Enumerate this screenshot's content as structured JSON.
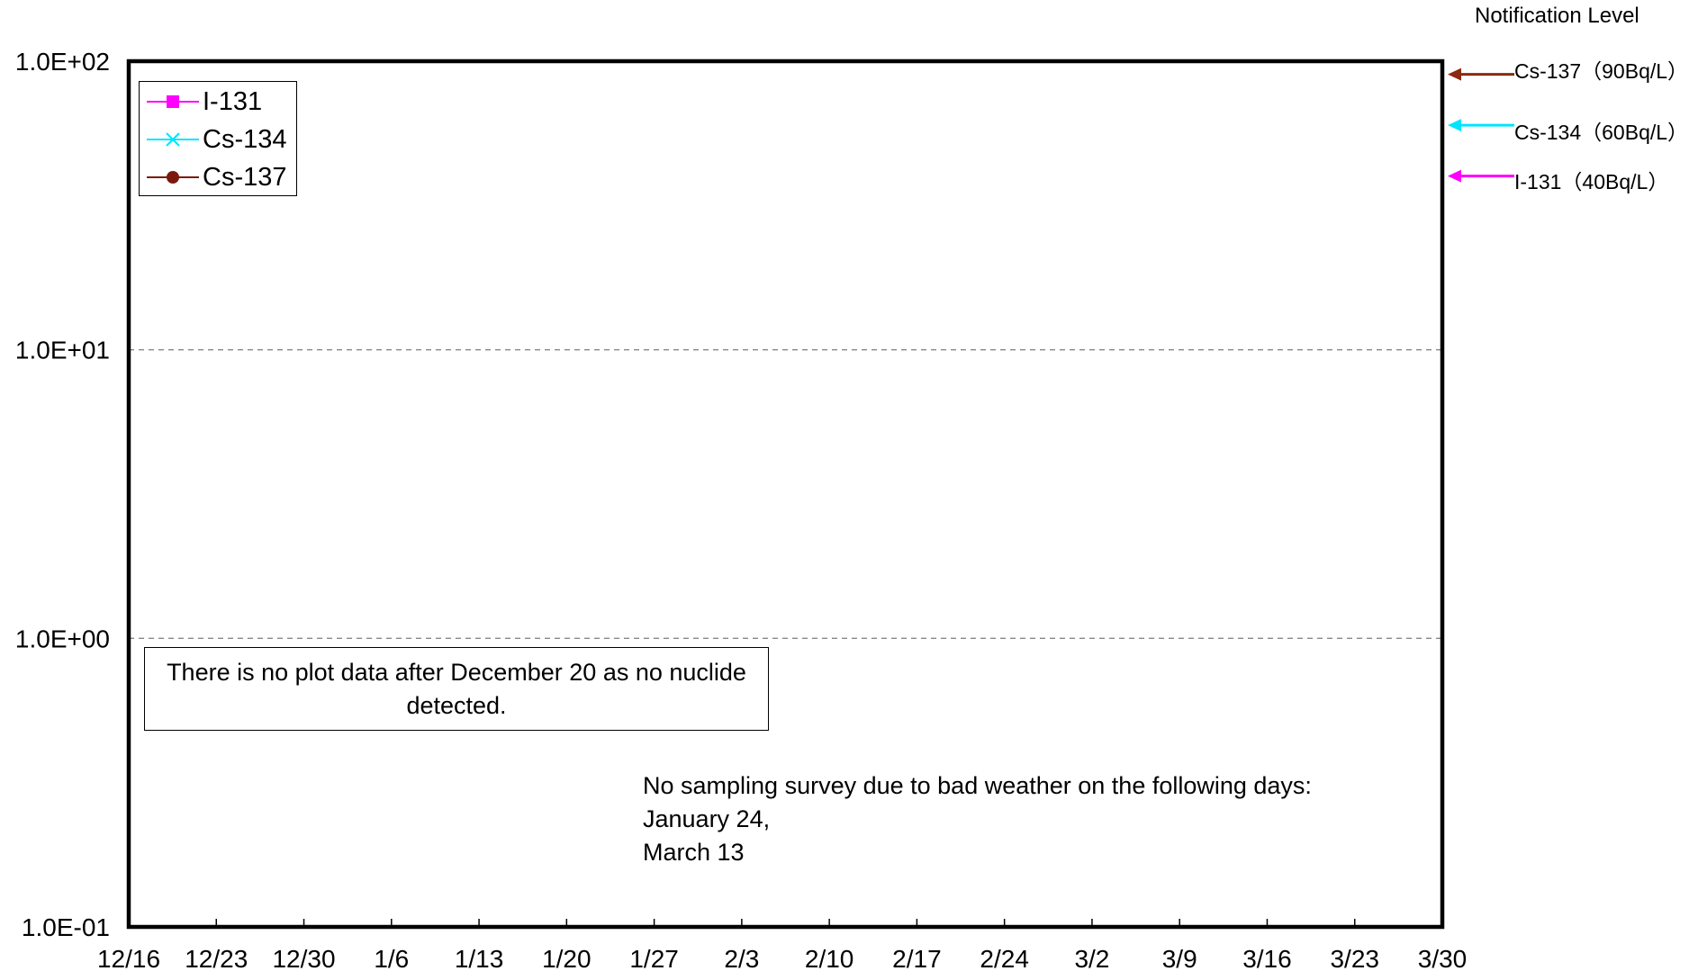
{
  "chart_data": {
    "type": "line",
    "title": "",
    "xlabel": "",
    "ylabel": "",
    "y_scale": "log",
    "ylim": [
      0.1,
      100
    ],
    "y_ticks": [
      "1.0E-01",
      "1.0E+00",
      "1.0E+01",
      "1.0E+02"
    ],
    "x_ticks": [
      "12/16",
      "12/23",
      "12/30",
      "1/6",
      "1/13",
      "1/20",
      "1/27",
      "2/3",
      "2/10",
      "2/17",
      "2/24",
      "3/2",
      "3/9",
      "3/16",
      "3/23",
      "3/30"
    ],
    "grid": "horizontal dashed",
    "legend_position": "top-left",
    "series": [
      {
        "name": "I-131",
        "color": "#ff00ff",
        "marker": "square",
        "values": []
      },
      {
        "name": "Cs-134",
        "color": "#00e5ff",
        "marker": "x",
        "values": []
      },
      {
        "name": "Cs-137",
        "color": "#7b1a0c",
        "marker": "circle",
        "values": []
      }
    ],
    "notification_title": "Notification Level",
    "notification_levels": [
      {
        "label": "Cs-137（90Bq/L）",
        "value": 90,
        "color": "#8b2a10"
      },
      {
        "label": "Cs-134（60Bq/L）",
        "value": 60,
        "color": "#00e5ff"
      },
      {
        "label": "I-131（40Bq/L）",
        "value": 40,
        "color": "#ff00ff"
      }
    ],
    "annotations": {
      "no_data": "There is no plot data after December 20 as no nuclide detected.",
      "weather_lines": [
        "No sampling survey due to bad weather on the following days:",
        "January 24,",
        "March 13"
      ]
    }
  }
}
